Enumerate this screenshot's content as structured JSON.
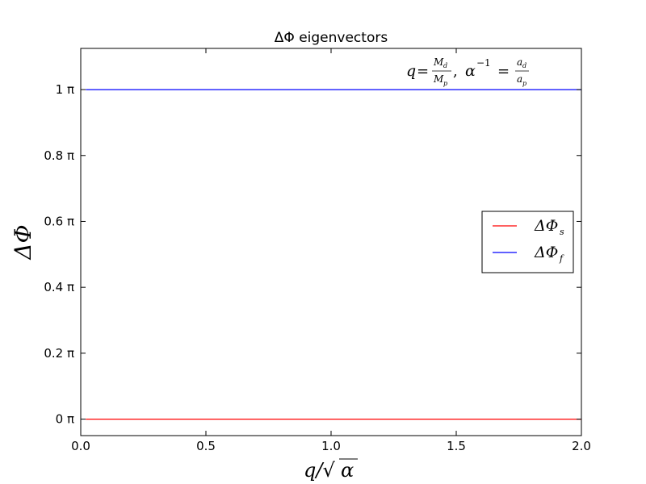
{
  "chart_data": {
    "type": "line",
    "title": "ΔΦ eigenvectors",
    "xlabel": "q/√α",
    "ylabel": "ΔΦ",
    "xlim": [
      0.0,
      2.0
    ],
    "ylim": [
      -0.05,
      1.125
    ],
    "x_ticks": [
      0.0,
      0.5,
      1.0,
      1.5,
      2.0
    ],
    "x_tick_labels": [
      "0.0",
      "0.5",
      "1.0",
      "1.5",
      "2.0"
    ],
    "y_ticks": [
      0,
      0.2,
      0.4,
      0.6,
      0.8,
      1.0
    ],
    "y_tick_labels": [
      "0 π",
      "0.2 π",
      "0.4 π",
      "0.6 π",
      "0.8 π",
      "1 π"
    ],
    "annotation": "q=M_d/M_p, α^-1 =a_d/a_p",
    "grid": false,
    "legend_position": "center-right",
    "series": [
      {
        "name": "ΔΦ_s",
        "color": "#ff0000",
        "x": [
          0.02,
          2.0
        ],
        "y": [
          0,
          0
        ]
      },
      {
        "name": "ΔΦ_f",
        "color": "#0000ff",
        "x": [
          0.02,
          2.0
        ],
        "y": [
          1,
          1
        ]
      }
    ]
  }
}
